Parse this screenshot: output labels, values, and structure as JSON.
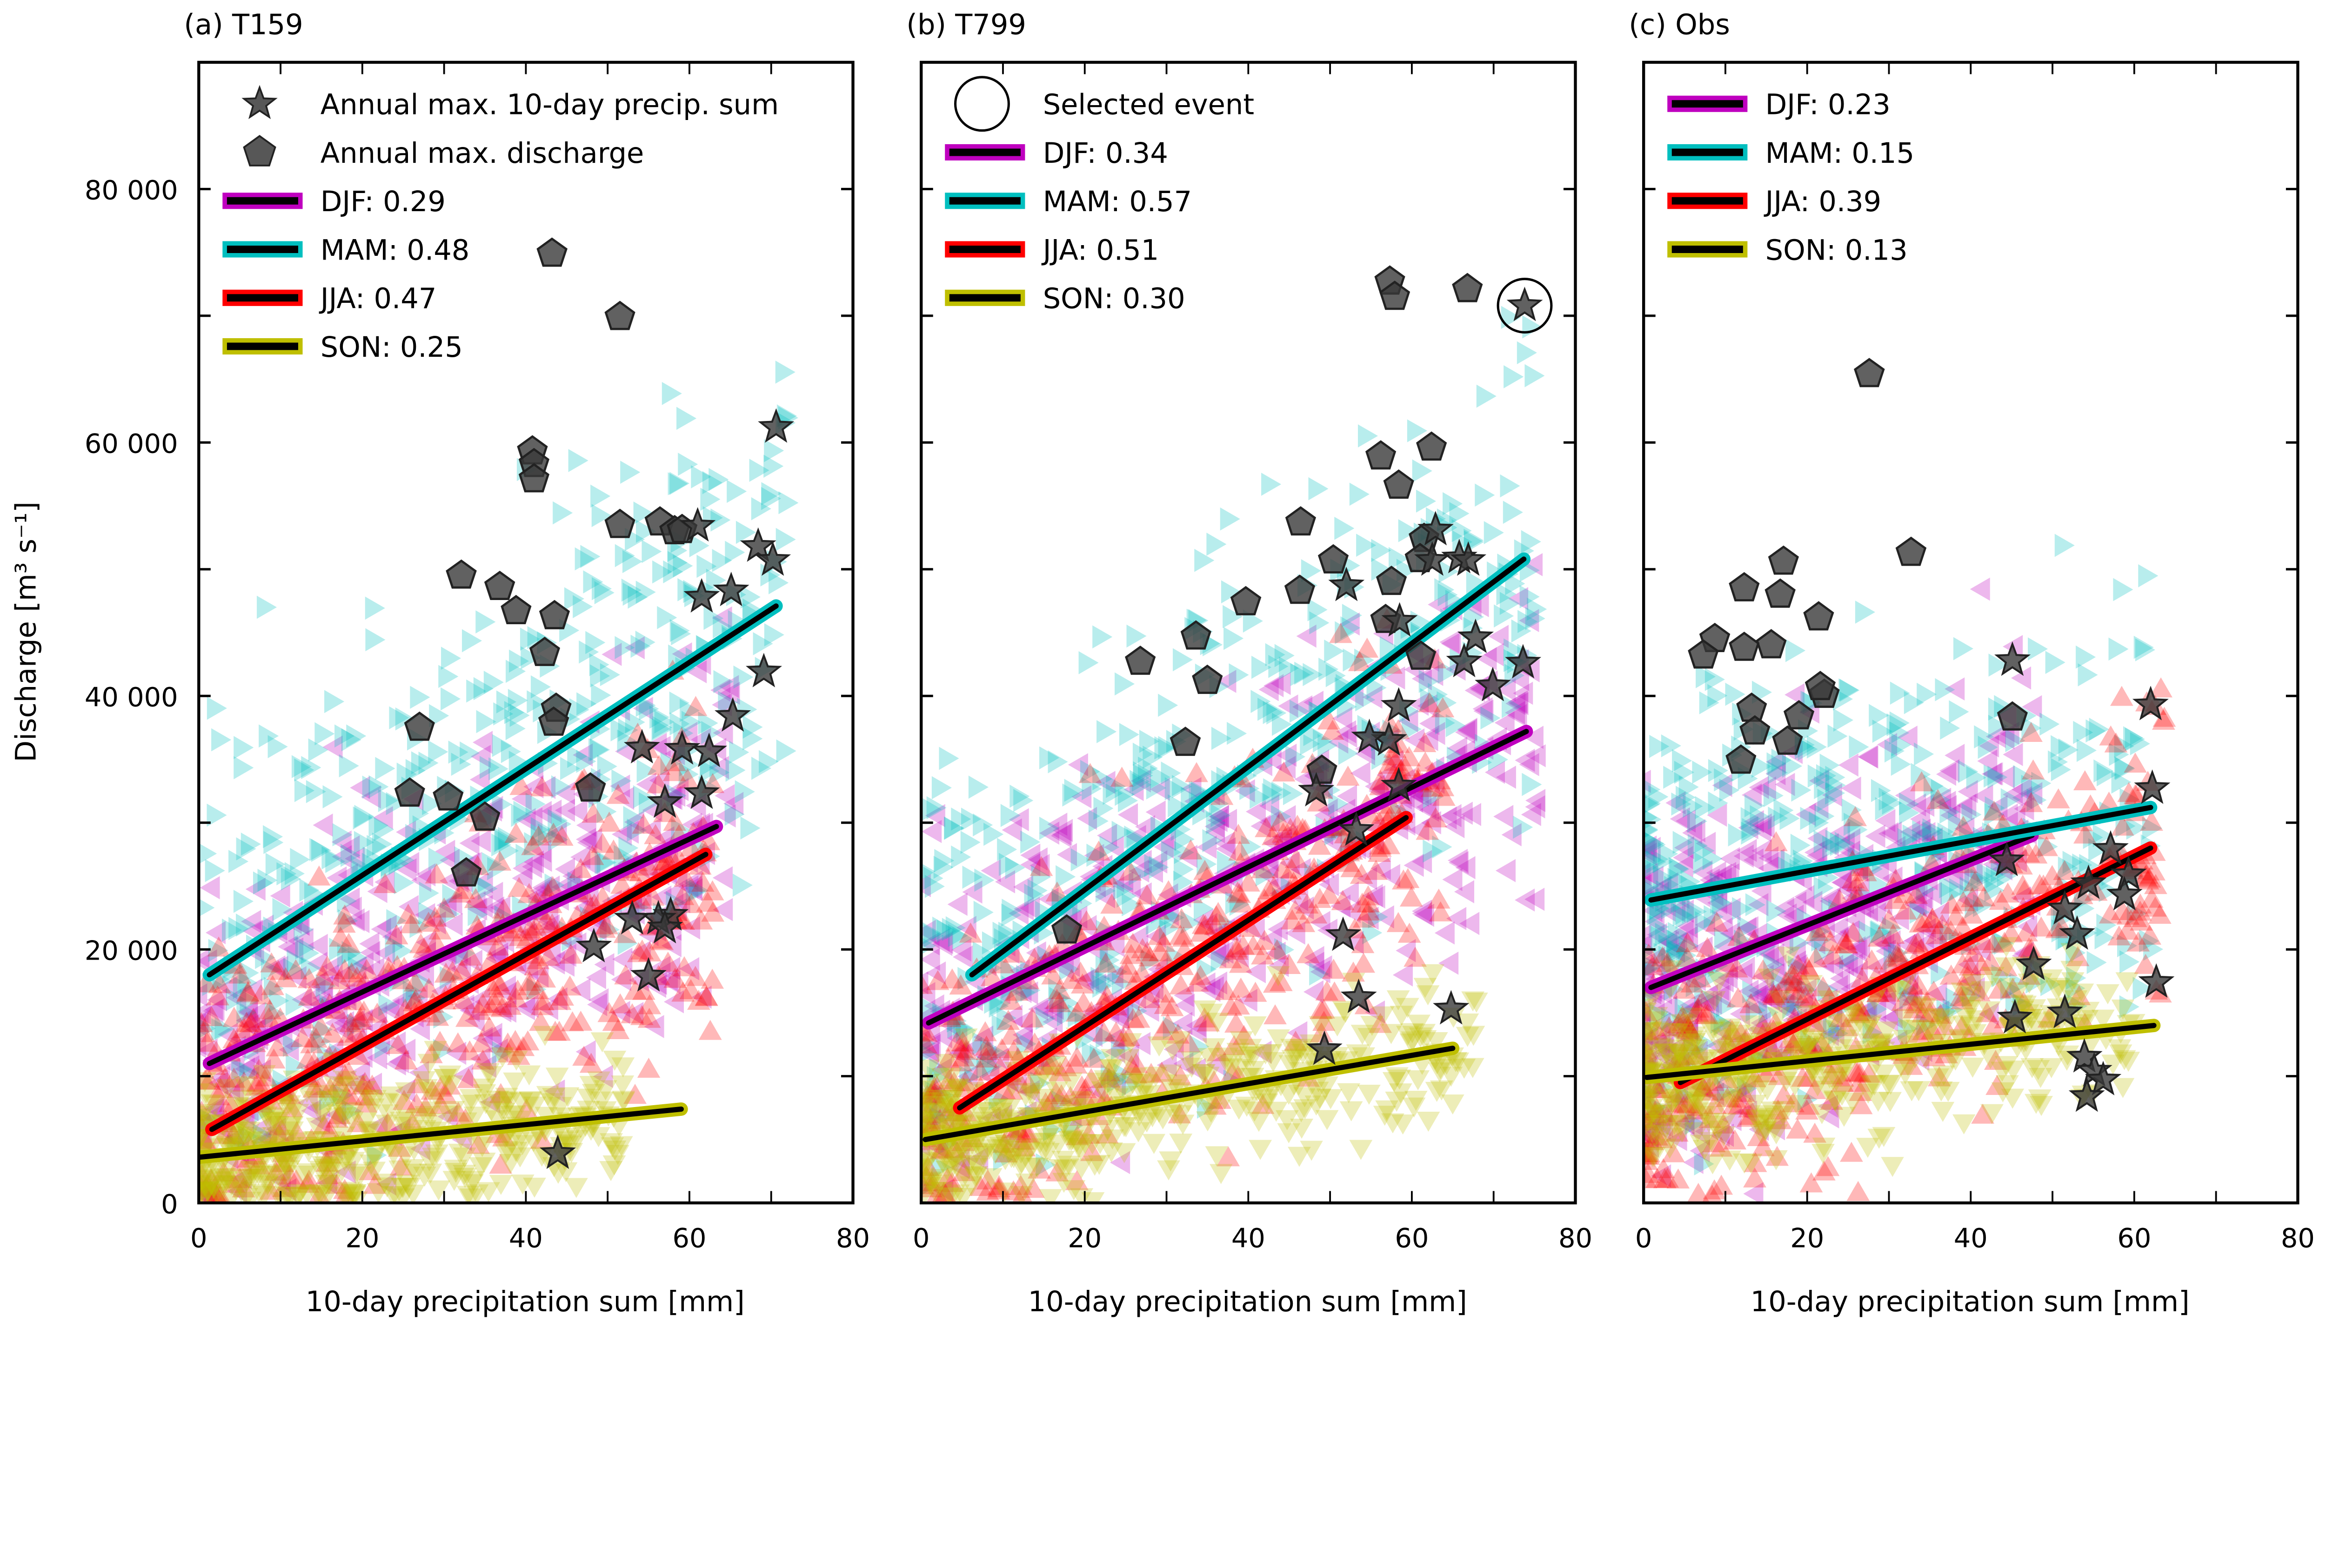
{
  "ylabel": "Discharge [m³ s⁻¹]",
  "colors": {
    "DJF": "#bf00bf",
    "MAM": "#00bfbf",
    "JJA": "#ff0000",
    "SON": "#bfbf00",
    "marker": "#3a3a3a"
  },
  "chart_data": [
    {
      "type": "scatter",
      "title": "(a) T159",
      "xlabel": "10-day precipitation sum [mm]",
      "xlim": [
        0,
        80
      ],
      "ylim": [
        0,
        90000
      ],
      "xticklabels": [
        "0",
        "20",
        "40",
        "60",
        "80"
      ],
      "yticklabels": [
        "0",
        "20 000",
        "40 000",
        "60 000",
        "80 000"
      ],
      "grid": false,
      "legend_position": "top-left",
      "legend": {
        "star": "Annual max. 10-day precip. sum",
        "pentagon": "Annual max. discharge",
        "DJF": "DJF:  0.29",
        "MAM": "MAM:  0.48",
        "JJA": "JJA:  0.47",
        "SON": "SON:  0.25"
      },
      "regression_lines": [
        {
          "season": "DJF",
          "r": 0.29,
          "x": [
            1.3,
            63.3
          ],
          "y": [
            11000,
            29700
          ]
        },
        {
          "season": "MAM",
          "r": 0.48,
          "x": [
            1.3,
            70.6
          ],
          "y": [
            18000,
            47100
          ]
        },
        {
          "season": "JJA",
          "r": 0.47,
          "x": [
            1.6,
            62
          ],
          "y": [
            5800,
            27500
          ]
        },
        {
          "season": "SON",
          "r": 0.25,
          "x": [
            0,
            59
          ],
          "y": [
            3600,
            7400
          ]
        }
      ],
      "annual_max_discharge": [
        [
          43.2,
          74900
        ],
        [
          51.5,
          69900
        ],
        [
          40.8,
          59300
        ],
        [
          41.0,
          58300
        ],
        [
          41.0,
          57100
        ],
        [
          56.4,
          53700
        ],
        [
          58.2,
          53000
        ],
        [
          59.1,
          53100
        ],
        [
          51.5,
          53500
        ],
        [
          32.1,
          49500
        ],
        [
          36.8,
          48600
        ],
        [
          38.8,
          46700
        ],
        [
          43.5,
          46300
        ],
        [
          42.3,
          43400
        ],
        [
          43.7,
          39000
        ],
        [
          43.4,
          37900
        ],
        [
          27.0,
          37500
        ],
        [
          47.9,
          32700
        ],
        [
          25.8,
          32300
        ],
        [
          30.5,
          32000
        ],
        [
          35.0,
          30400
        ],
        [
          32.7,
          26000
        ]
      ],
      "annual_max_precip": [
        [
          70.6,
          61200
        ],
        [
          68.4,
          51800
        ],
        [
          70.2,
          50700
        ],
        [
          65.1,
          48300
        ],
        [
          61.5,
          47800
        ],
        [
          61.0,
          53400
        ],
        [
          69.1,
          41900
        ],
        [
          65.3,
          38400
        ],
        [
          62.4,
          35600
        ],
        [
          59.1,
          35800
        ],
        [
          54.2,
          35900
        ],
        [
          61.5,
          32300
        ],
        [
          57.0,
          31600
        ],
        [
          57.7,
          22700
        ],
        [
          56.2,
          22400
        ],
        [
          57.0,
          21700
        ],
        [
          53.0,
          22400
        ],
        [
          48.3,
          20200
        ],
        [
          55.0,
          17900
        ],
        [
          43.9,
          3900
        ]
      ]
    },
    {
      "type": "scatter",
      "title": "(b) T799",
      "xlabel": "10-day precipitation sum [mm]",
      "xlim": [
        0,
        80
      ],
      "ylim": [
        0,
        90000
      ],
      "xticklabels": [
        "0",
        "20",
        "40",
        "60",
        "80"
      ],
      "grid": false,
      "legend_position": "top-left",
      "legend": {
        "circle": "Selected event",
        "DJF": "DJF:  0.34",
        "MAM": "MAM:  0.57",
        "JJA": "JJA:  0.51",
        "SON": "SON:  0.30"
      },
      "regression_lines": [
        {
          "season": "DJF",
          "r": 0.34,
          "x": [
            0.9,
            74
          ],
          "y": [
            14200,
            37200
          ]
        },
        {
          "season": "MAM",
          "r": 0.57,
          "x": [
            6.2,
            73.7
          ],
          "y": [
            18000,
            50800
          ]
        },
        {
          "season": "JJA",
          "r": 0.51,
          "x": [
            4.7,
            59.3
          ],
          "y": [
            7500,
            30400
          ]
        },
        {
          "season": "SON",
          "r": 0.3,
          "x": [
            0.5,
            65
          ],
          "y": [
            5000,
            12200
          ]
        }
      ],
      "selected_event": [
        73.8,
        70800
      ],
      "annual_max_discharge": [
        [
          57.3,
          72700
        ],
        [
          57.9,
          71500
        ],
        [
          66.8,
          72100
        ],
        [
          56.2,
          58900
        ],
        [
          62.4,
          59600
        ],
        [
          58.4,
          56600
        ],
        [
          46.4,
          53700
        ],
        [
          50.4,
          50700
        ],
        [
          39.7,
          47400
        ],
        [
          33.6,
          44700
        ],
        [
          46.3,
          48300
        ],
        [
          57.5,
          49000
        ],
        [
          56.8,
          46000
        ],
        [
          61.5,
          52400
        ],
        [
          61.1,
          43100
        ],
        [
          26.8,
          42700
        ],
        [
          35.0,
          41200
        ],
        [
          32.3,
          36300
        ],
        [
          49.0,
          34100
        ],
        [
          17.8,
          21500
        ],
        [
          61.0,
          50800
        ]
      ],
      "annual_max_precip": [
        [
          73.8,
          70800
        ],
        [
          62.9,
          53100
        ],
        [
          65.8,
          50900
        ],
        [
          66.9,
          50700
        ],
        [
          62.5,
          50700
        ],
        [
          52.0,
          48700
        ],
        [
          58.5,
          45900
        ],
        [
          67.8,
          44600
        ],
        [
          73.6,
          42600
        ],
        [
          66.4,
          42700
        ],
        [
          69.9,
          40800
        ],
        [
          58.4,
          39200
        ],
        [
          57.2,
          36500
        ],
        [
          54.8,
          36700
        ],
        [
          58.4,
          32900
        ],
        [
          48.3,
          32500
        ],
        [
          53.2,
          29400
        ],
        [
          51.6,
          21100
        ],
        [
          53.5,
          16200
        ],
        [
          64.8,
          15300
        ],
        [
          49.3,
          12100
        ]
      ]
    },
    {
      "type": "scatter",
      "title": "(c) Obs",
      "xlabel": "10-day precipitation sum [mm]",
      "xlim": [
        0,
        80
      ],
      "ylim": [
        0,
        90000
      ],
      "xticklabels": [
        "0",
        "20",
        "40",
        "60",
        "80"
      ],
      "grid": false,
      "legend_position": "top-left",
      "legend": {
        "DJF": "DJF:  0.23",
        "MAM": "MAM:  0.15",
        "JJA": "JJA:  0.39",
        "SON": "SON:  0.13"
      },
      "regression_lines": [
        {
          "season": "DJF",
          "r": 0.23,
          "x": [
            0.9,
            47.5
          ],
          "y": [
            17000,
            29000
          ]
        },
        {
          "season": "MAM",
          "r": 0.15,
          "x": [
            0.9,
            62
          ],
          "y": [
            23900,
            31200
          ]
        },
        {
          "season": "JJA",
          "r": 0.39,
          "x": [
            4.5,
            62
          ],
          "y": [
            9500,
            28000
          ]
        },
        {
          "season": "SON",
          "r": 0.13,
          "x": [
            0.4,
            62.4
          ],
          "y": [
            9900,
            14000
          ]
        }
      ],
      "annual_max_discharge": [
        [
          27.6,
          65400
        ],
        [
          32.7,
          51300
        ],
        [
          17.1,
          50600
        ],
        [
          12.3,
          48500
        ],
        [
          16.7,
          48000
        ],
        [
          21.4,
          46200
        ],
        [
          8.7,
          44500
        ],
        [
          12.3,
          43800
        ],
        [
          15.6,
          44000
        ],
        [
          7.3,
          43200
        ],
        [
          22.1,
          40100
        ],
        [
          21.6,
          40700
        ],
        [
          13.2,
          39000
        ],
        [
          19.0,
          38400
        ],
        [
          13.6,
          37200
        ],
        [
          17.6,
          36400
        ],
        [
          11.9,
          34900
        ],
        [
          45.1,
          38300
        ]
      ],
      "annual_max_precip": [
        [
          45.1,
          42800
        ],
        [
          62.0,
          39300
        ],
        [
          62.2,
          32700
        ],
        [
          44.4,
          27000
        ],
        [
          57.1,
          27900
        ],
        [
          54.4,
          25200
        ],
        [
          59.3,
          25900
        ],
        [
          58.8,
          24300
        ],
        [
          53.0,
          21200
        ],
        [
          47.7,
          18800
        ],
        [
          51.5,
          23200
        ],
        [
          62.7,
          17400
        ],
        [
          45.4,
          14600
        ],
        [
          51.5,
          15000
        ],
        [
          53.9,
          11500
        ],
        [
          55.1,
          10400
        ],
        [
          56.2,
          9700
        ],
        [
          54.2,
          8400
        ]
      ]
    }
  ]
}
